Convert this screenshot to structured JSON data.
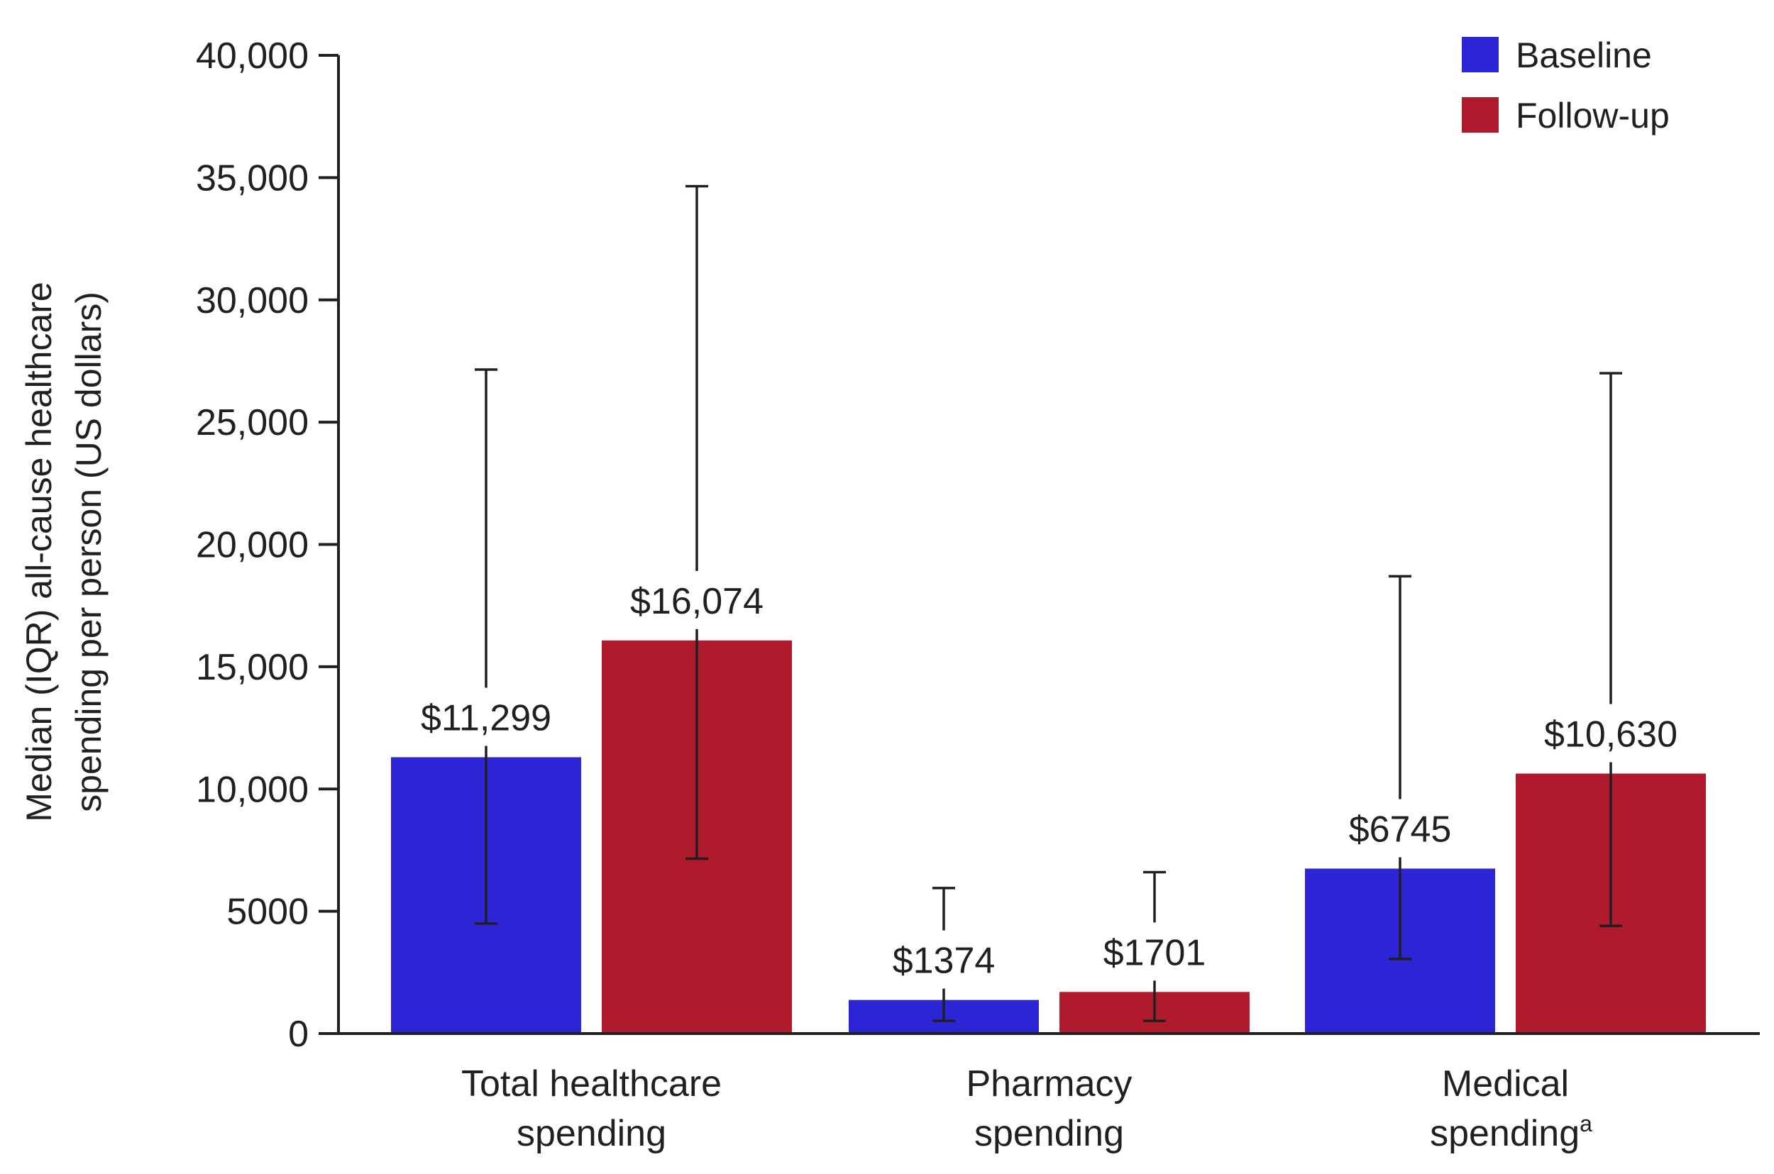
{
  "chart_data": {
    "type": "bar",
    "title": "",
    "ylabel_lines": [
      "Median (IQR) all-cause healthcare",
      "spending per person (US dollars)"
    ],
    "xlabel": "",
    "ylim": [
      0,
      40000
    ],
    "yticks": [
      0,
      5000,
      10000,
      15000,
      20000,
      25000,
      30000,
      35000,
      40000
    ],
    "ytick_labels": [
      "0",
      "5000",
      "10,000",
      "15,000",
      "20,000",
      "25,000",
      "30,000",
      "35,000",
      "40,000"
    ],
    "grid": false,
    "legend_position": "top-right",
    "categories": [
      {
        "lines": [
          "Total healthcare",
          "spending"
        ],
        "superscript": ""
      },
      {
        "lines": [
          "Pharmacy",
          "spending"
        ],
        "superscript": ""
      },
      {
        "lines": [
          "Medical",
          "spending"
        ],
        "superscript": "a"
      }
    ],
    "series": [
      {
        "name": "Baseline",
        "color": "#2b25d6",
        "values": [
          11299,
          1374,
          6745
        ],
        "value_labels": [
          "$11,299",
          "$1374",
          "$6745"
        ],
        "iqr_low": [
          4500,
          520,
          3050
        ],
        "iqr_high": [
          27150,
          5950,
          18700
        ]
      },
      {
        "name": "Follow-up",
        "color": "#b01a2d",
        "values": [
          16074,
          1701,
          10630
        ],
        "value_labels": [
          "$16,074",
          "$1701",
          "$10,630"
        ],
        "iqr_low": [
          7150,
          520,
          4400
        ],
        "iqr_high": [
          34650,
          6600,
          27000
        ]
      }
    ]
  }
}
